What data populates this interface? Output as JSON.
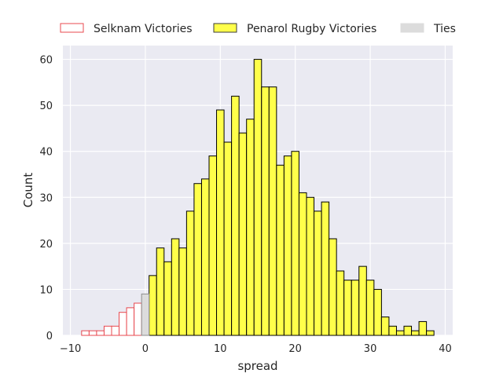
{
  "chart_data": {
    "type": "bar",
    "xlabel": "spread",
    "ylabel": "Count",
    "xlim": [
      -11,
      41
    ],
    "ylim": [
      0,
      63
    ],
    "xticks": [
      -10,
      0,
      10,
      20,
      30,
      40
    ],
    "yticks": [
      0,
      10,
      20,
      30,
      40,
      50,
      60
    ],
    "grid": true,
    "legend_position": "top",
    "series": [
      {
        "name": "Selknam Victories",
        "color": "#e8484f",
        "fill": "#ffffff",
        "style": "outline",
        "bins": [
          {
            "x": -8,
            "count": 1
          },
          {
            "x": -7,
            "count": 1
          },
          {
            "x": -6,
            "count": 1
          },
          {
            "x": -5,
            "count": 2
          },
          {
            "x": -4,
            "count": 2
          },
          {
            "x": -3,
            "count": 5
          },
          {
            "x": -2,
            "count": 6
          },
          {
            "x": -1,
            "count": 7
          }
        ]
      },
      {
        "name": "Penarol Rugby Victories",
        "color": "#000000",
        "fill": "#ffff4a",
        "style": "filled",
        "bins": [
          {
            "x": 1,
            "count": 13
          },
          {
            "x": 2,
            "count": 19
          },
          {
            "x": 3,
            "count": 16
          },
          {
            "x": 4,
            "count": 21
          },
          {
            "x": 5,
            "count": 19
          },
          {
            "x": 6,
            "count": 27
          },
          {
            "x": 7,
            "count": 33
          },
          {
            "x": 8,
            "count": 34
          },
          {
            "x": 9,
            "count": 39
          },
          {
            "x": 10,
            "count": 49
          },
          {
            "x": 11,
            "count": 42
          },
          {
            "x": 12,
            "count": 52
          },
          {
            "x": 13,
            "count": 44
          },
          {
            "x": 14,
            "count": 47
          },
          {
            "x": 15,
            "count": 60
          },
          {
            "x": 16,
            "count": 54
          },
          {
            "x": 17,
            "count": 54
          },
          {
            "x": 18,
            "count": 37
          },
          {
            "x": 19,
            "count": 39
          },
          {
            "x": 20,
            "count": 40
          },
          {
            "x": 21,
            "count": 31
          },
          {
            "x": 22,
            "count": 30
          },
          {
            "x": 23,
            "count": 27
          },
          {
            "x": 24,
            "count": 29
          },
          {
            "x": 25,
            "count": 21
          },
          {
            "x": 26,
            "count": 14
          },
          {
            "x": 27,
            "count": 12
          },
          {
            "x": 28,
            "count": 12
          },
          {
            "x": 29,
            "count": 15
          },
          {
            "x": 30,
            "count": 12
          },
          {
            "x": 31,
            "count": 10
          },
          {
            "x": 32,
            "count": 4
          },
          {
            "x": 33,
            "count": 2
          },
          {
            "x": 34,
            "count": 1
          },
          {
            "x": 35,
            "count": 2
          },
          {
            "x": 36,
            "count": 1
          },
          {
            "x": 37,
            "count": 3
          },
          {
            "x": 38,
            "count": 1
          }
        ]
      },
      {
        "name": "Ties",
        "color": "#8c8c8c",
        "fill": "#dcdcdc",
        "style": "filled",
        "bins": [
          {
            "x": 0,
            "count": 9
          }
        ]
      }
    ]
  }
}
